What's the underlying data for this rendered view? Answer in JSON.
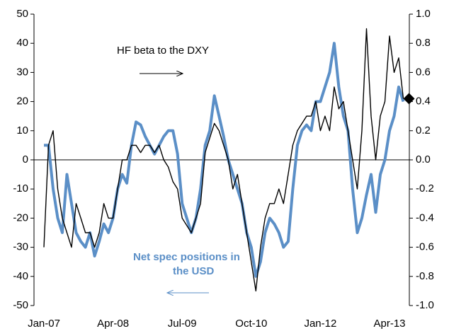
{
  "chart_data": {
    "type": "line",
    "categories": [
      "Jan-07",
      null,
      null,
      null,
      null,
      null,
      null,
      null,
      null,
      null,
      null,
      null,
      null,
      null,
      null,
      "Apr-08",
      null,
      null,
      null,
      null,
      null,
      null,
      null,
      null,
      null,
      null,
      null,
      null,
      null,
      null,
      "Jul-09",
      null,
      null,
      null,
      null,
      null,
      null,
      null,
      null,
      null,
      null,
      null,
      null,
      null,
      null,
      "Oct-10",
      null,
      null,
      null,
      null,
      null,
      null,
      null,
      null,
      null,
      null,
      null,
      null,
      null,
      null,
      "Jan-12",
      null,
      null,
      null,
      null,
      null,
      null,
      null,
      null,
      null,
      null,
      null,
      null,
      null,
      null,
      "Apr-13",
      null,
      null,
      null
    ],
    "series": [
      {
        "name": "Net spec positions in the USD",
        "color": "#5b8fc7",
        "values": [
          5,
          5,
          -10,
          -20,
          -25,
          -5,
          -15,
          -25,
          -28,
          -30,
          -25,
          -33,
          -28,
          -22,
          -25,
          -20,
          -10,
          -5,
          -8,
          5,
          13,
          12,
          8,
          5,
          2,
          5,
          8,
          10,
          10,
          2,
          -15,
          -20,
          -25,
          -20,
          -10,
          5,
          10,
          22,
          15,
          8,
          0,
          -5,
          -10,
          -15,
          -25,
          -30,
          -40,
          -35,
          -25,
          -20,
          -22,
          -25,
          -30,
          -28,
          -10,
          5,
          10,
          12,
          10,
          20,
          20,
          25,
          30,
          40,
          25,
          15,
          10,
          -10,
          -25,
          -20,
          -12,
          -5,
          -18,
          -5,
          0,
          10,
          15,
          25,
          20
        ]
      },
      {
        "name": "HF beta to the DXY",
        "color": "#000000",
        "axis": "y2",
        "values": [
          -0.6,
          0.1,
          0.2,
          -0.2,
          -0.4,
          -0.5,
          -0.6,
          -0.3,
          -0.4,
          -0.5,
          -0.5,
          -0.6,
          -0.5,
          -0.3,
          -0.4,
          -0.4,
          -0.2,
          0,
          0,
          0.1,
          0.1,
          0.05,
          0.1,
          0.1,
          0.05,
          0.1,
          0,
          -0.05,
          -0.15,
          -0.2,
          -0.4,
          -0.45,
          -0.5,
          -0.4,
          -0.3,
          0.05,
          0.15,
          0.25,
          0.2,
          0.1,
          0,
          -0.2,
          -0.1,
          -0.3,
          -0.5,
          -0.7,
          -0.9,
          -0.6,
          -0.4,
          -0.3,
          -0.3,
          -0.2,
          -0.3,
          -0.1,
          0.1,
          0.2,
          0.25,
          0.3,
          0.3,
          0.4,
          0.2,
          0.3,
          0.2,
          0.5,
          0.35,
          0.4,
          0.2,
          0,
          -0.2,
          0.2,
          0.9,
          0.3,
          0,
          0.3,
          0.4,
          0.85,
          0.6,
          0.7,
          0.42
        ]
      }
    ],
    "annotations": {
      "beta": "HF beta to the DXY",
      "spec": [
        "Net spec positions in",
        "the USD"
      ]
    },
    "ylim": [
      -50,
      50
    ],
    "yticks": [
      -50,
      -40,
      -30,
      -20,
      -10,
      0,
      10,
      20,
      30,
      40,
      50
    ],
    "y2lim": [
      -1,
      1
    ],
    "y2ticks": [
      {
        "value": -1,
        "label": "-1.0"
      },
      -0.8,
      -0.6,
      -0.4,
      -0.2,
      {
        "value": 0,
        "label": "0.0"
      },
      0.2,
      0.4,
      0.6,
      0.8,
      {
        "value": 1,
        "label": "1.0"
      }
    ]
  }
}
